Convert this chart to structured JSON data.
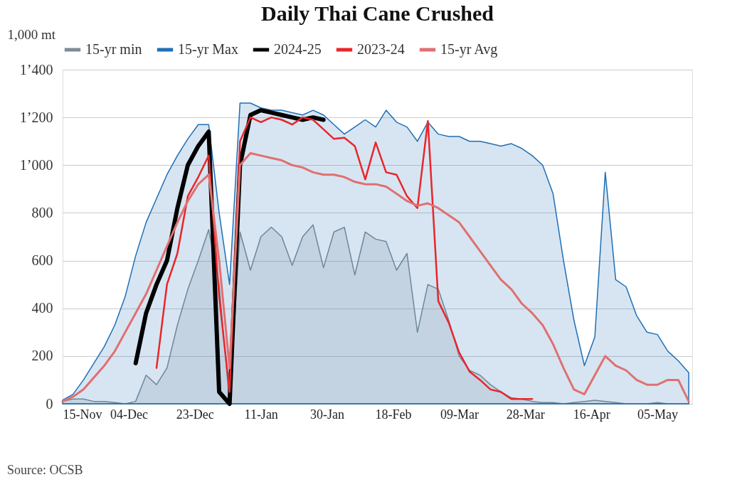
{
  "chart_data": {
    "type": "line",
    "title": "Daily Thai Cane Crushed",
    "ylabel": "1,000 mt",
    "annotations": [
      "Source: OCSB"
    ],
    "x": [
      "2024-11-15",
      "2024-11-18",
      "2024-11-21",
      "2024-11-24",
      "2024-11-27",
      "2024-11-30",
      "2024-12-03",
      "2024-12-06",
      "2024-12-09",
      "2024-12-12",
      "2024-12-15",
      "2024-12-18",
      "2024-12-21",
      "2024-12-24",
      "2024-12-27",
      "2024-12-30",
      "2025-01-02",
      "2025-01-05",
      "2025-01-08",
      "2025-01-11",
      "2025-01-14",
      "2025-01-17",
      "2025-01-20",
      "2025-01-23",
      "2025-01-26",
      "2025-01-29",
      "2025-02-01",
      "2025-02-04",
      "2025-02-07",
      "2025-02-10",
      "2025-02-13",
      "2025-02-16",
      "2025-02-19",
      "2025-02-22",
      "2025-02-25",
      "2025-02-28",
      "2025-03-03",
      "2025-03-06",
      "2025-03-09",
      "2025-03-12",
      "2025-03-15",
      "2025-03-18",
      "2025-03-21",
      "2025-03-24",
      "2025-03-27",
      "2025-03-30",
      "2025-04-02",
      "2025-04-05",
      "2025-04-08",
      "2025-04-11",
      "2025-04-14",
      "2025-04-17",
      "2025-04-20",
      "2025-04-23",
      "2025-04-26",
      "2025-04-29",
      "2025-05-02",
      "2025-05-05",
      "2025-05-08",
      "2025-05-11",
      "2025-05-14"
    ],
    "series": [
      {
        "name": "15-yr min",
        "type": "area",
        "color": "#7f8c94",
        "values": [
          10,
          20,
          20,
          10,
          10,
          5,
          0,
          10,
          120,
          80,
          150,
          330,
          480,
          600,
          730,
          500,
          0,
          720,
          560,
          700,
          740,
          700,
          580,
          700,
          750,
          570,
          720,
          740,
          540,
          720,
          690,
          680,
          560,
          630,
          300,
          500,
          480,
          350,
          200,
          140,
          120,
          80,
          50,
          25,
          20,
          10,
          5,
          5,
          0,
          5,
          10,
          15,
          10,
          5,
          0,
          0,
          0,
          5,
          0,
          0,
          0
        ]
      },
      {
        "name": "15-yr Max",
        "type": "area",
        "color": "#1f6fb5",
        "values": [
          15,
          40,
          100,
          170,
          240,
          330,
          450,
          620,
          760,
          860,
          960,
          1040,
          1110,
          1170,
          1170,
          800,
          500,
          1260,
          1260,
          1240,
          1230,
          1230,
          1220,
          1210,
          1230,
          1210,
          1170,
          1130,
          1160,
          1190,
          1160,
          1230,
          1180,
          1160,
          1100,
          1180,
          1130,
          1120,
          1120,
          1100,
          1100,
          1090,
          1080,
          1090,
          1070,
          1040,
          1000,
          880,
          600,
          350,
          160,
          280,
          970,
          520,
          490,
          370,
          300,
          290,
          220,
          180,
          130
        ]
      },
      {
        "name": "2024-25",
        "color": "#000000",
        "values": [
          null,
          null,
          null,
          null,
          null,
          null,
          null,
          170,
          380,
          500,
          600,
          820,
          1000,
          1080,
          1140,
          50,
          0,
          1000,
          1210,
          1230,
          1220,
          1210,
          1200,
          1190,
          1200,
          1190,
          null,
          null,
          null,
          null,
          null,
          null,
          null,
          null,
          null,
          null,
          null,
          null,
          null,
          null,
          null,
          null,
          null,
          null,
          null,
          null,
          null,
          null,
          null,
          null,
          null,
          null,
          null,
          null,
          null,
          null,
          null,
          null,
          null,
          null,
          null
        ]
      },
      {
        "name": "2023-24",
        "color": "#e8262b",
        "values": [
          null,
          null,
          null,
          null,
          null,
          null,
          null,
          null,
          null,
          150,
          500,
          630,
          870,
          950,
          1040,
          450,
          50,
          1100,
          1200,
          1180,
          1200,
          1190,
          1170,
          1200,
          1190,
          1150,
          1110,
          1115,
          1080,
          940,
          1095,
          970,
          960,
          870,
          820,
          1185,
          430,
          340,
          215,
          135,
          100,
          60,
          50,
          20,
          20,
          20,
          null,
          null,
          null,
          null,
          null,
          null,
          null,
          null,
          null,
          null,
          null,
          null,
          null,
          null,
          null
        ]
      },
      {
        "name": "15-yr Avg",
        "color": "#e07070",
        "values": [
          10,
          30,
          60,
          110,
          160,
          220,
          300,
          380,
          460,
          560,
          660,
          760,
          850,
          920,
          960,
          600,
          150,
          1000,
          1050,
          1040,
          1030,
          1020,
          1000,
          990,
          970,
          960,
          960,
          950,
          930,
          920,
          920,
          910,
          880,
          850,
          830,
          840,
          820,
          790,
          760,
          700,
          640,
          580,
          520,
          480,
          420,
          380,
          330,
          250,
          150,
          60,
          40,
          120,
          200,
          160,
          140,
          100,
          80,
          80,
          100,
          100,
          10
        ]
      }
    ],
    "xlim": [
      "2024-11-15",
      "2025-05-15"
    ],
    "xticks": [
      {
        "value": "2024-11-15",
        "label": "15-Nov"
      },
      {
        "value": "2024-12-04",
        "label": "04-Dec"
      },
      {
        "value": "2024-12-23",
        "label": "23-Dec"
      },
      {
        "value": "2025-01-11",
        "label": "11-Jan"
      },
      {
        "value": "2025-01-30",
        "label": "30-Jan"
      },
      {
        "value": "2025-02-18",
        "label": "18-Feb"
      },
      {
        "value": "2025-03-09",
        "label": "09-Mar"
      },
      {
        "value": "2025-03-28",
        "label": "28-Mar"
      },
      {
        "value": "2025-04-16",
        "label": "16-Apr"
      },
      {
        "value": "2025-05-05",
        "label": "05-May"
      }
    ],
    "ylim": [
      0,
      1400
    ],
    "yticks": [
      0,
      200,
      400,
      600,
      800,
      {
        "value": 1000,
        "label": "1’000"
      },
      {
        "value": 1200,
        "label": "1’200"
      },
      {
        "value": 1400,
        "label": "1’400"
      }
    ],
    "grid": "y",
    "legend": "top"
  }
}
